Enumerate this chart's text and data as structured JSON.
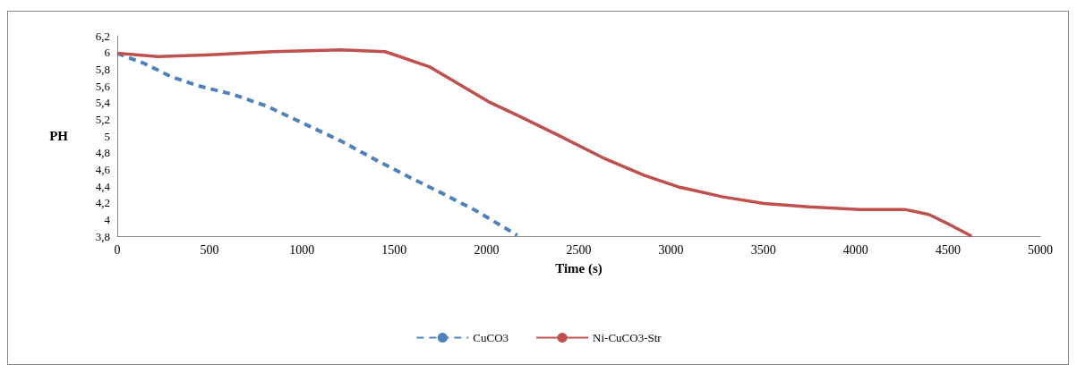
{
  "chart_data": {
    "type": "line",
    "xlabel": "Time (s)",
    "ylabel": "PH",
    "legend": "bottom",
    "grid": false,
    "marker": "none",
    "xlim": [
      0,
      5000
    ],
    "xticks": [
      0,
      500,
      1000,
      1500,
      2000,
      2500,
      3000,
      3500,
      4000,
      4500,
      5000
    ],
    "ylim": [
      3.8,
      6.2
    ],
    "yticks": [
      {
        "value": 3.8,
        "label": "3,8"
      },
      4,
      {
        "value": 4.2,
        "label": "4,2"
      },
      {
        "value": 4.4,
        "label": "4,4"
      },
      {
        "value": 4.6,
        "label": "4,6"
      },
      {
        "value": 4.8,
        "label": "4,8"
      },
      5,
      {
        "value": 5.2,
        "label": "5,2"
      },
      {
        "value": 5.4,
        "label": "5,4"
      },
      {
        "value": 5.6,
        "label": "5,6"
      },
      {
        "value": 5.8,
        "label": "5,8"
      },
      6,
      {
        "value": 6.2,
        "label": "6,2"
      }
    ],
    "series": [
      {
        "name": "CuCO3",
        "color": "#4f81bd",
        "line_style": "dashed",
        "x": [
          0,
          145,
          292,
          439,
          623,
          807,
          1028,
          1211,
          1395,
          1579,
          1763,
          1947,
          2167
        ],
        "values": [
          5.99,
          5.87,
          5.71,
          5.6,
          5.5,
          5.36,
          5.13,
          4.94,
          4.72,
          4.51,
          4.31,
          4.1,
          3.81
        ]
      },
      {
        "name": "Ni-CuCO3-Str",
        "color": "#c0504d",
        "line_style": "solid",
        "x": [
          0,
          219,
          476,
          844,
          1211,
          1450,
          1505,
          1690,
          1836,
          2020,
          2165,
          2388,
          2630,
          2853,
          3039,
          3281,
          3504,
          3745,
          4024,
          4266,
          4396,
          4507,
          4628
        ],
        "values": [
          5.99,
          5.95,
          5.97,
          6.01,
          6.03,
          6.01,
          5.97,
          5.83,
          5.64,
          5.4,
          5.25,
          5.01,
          4.74,
          4.53,
          4.39,
          4.27,
          4.19,
          4.15,
          4.12,
          4.12,
          4.06,
          3.94,
          3.8
        ]
      }
    ]
  }
}
